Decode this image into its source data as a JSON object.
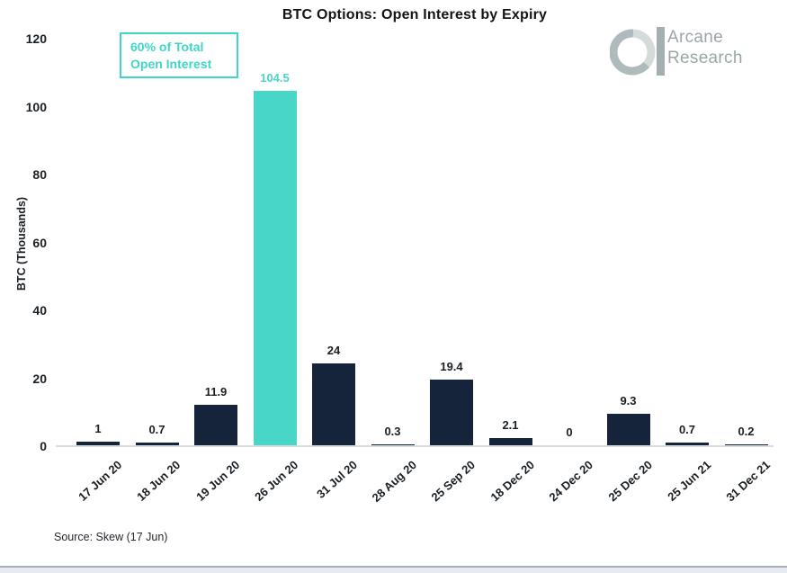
{
  "header": {
    "title": "BTC Options: Open Interest by Expiry"
  },
  "logo": {
    "name": "Arcane Research",
    "line1": "Arcane",
    "line2": "Research"
  },
  "annotation": {
    "line1": "60% of Total",
    "line2": "Open Interest"
  },
  "source": {
    "text": "Source: Skew (17 Jun)"
  },
  "chart_data": {
    "type": "bar",
    "title": "BTC Options: Open Interest by Expiry",
    "xlabel": "",
    "ylabel": "BTC (Thousands)",
    "categories": [
      "17 Jun 20",
      "18 Jun 20",
      "19 Jun 20",
      "26 Jun 20",
      "31 Jul 20",
      "28 Aug 20",
      "25 Sep 20",
      "18 Dec 20",
      "24 Dec 20",
      "25 Dec 20",
      "25 Jun 21",
      "31 Dec 21"
    ],
    "values": [
      1,
      0.7,
      11.9,
      104.5,
      24,
      0.3,
      19.4,
      2.1,
      0,
      9.3,
      0.7,
      0.2
    ],
    "highlight_index": 3,
    "annotation": "60% of Total Open Interest",
    "y_ticks": [
      0,
      20,
      40,
      60,
      80,
      100,
      120
    ],
    "ylim": [
      0,
      120
    ],
    "grid": false,
    "legend": null,
    "bar_color": "#15243a",
    "highlight_color": "#48d6c9",
    "axis_line_color": "#d9dde1"
  }
}
